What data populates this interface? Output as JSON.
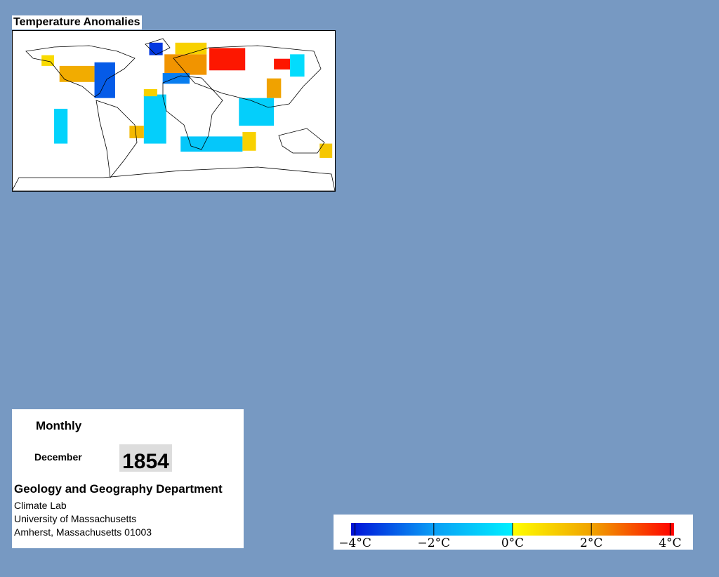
{
  "map": {
    "title": "Temperature Anomalies",
    "lonlim": [
      -180,
      180
    ],
    "latlim": [
      -90,
      90
    ],
    "cells": [
      {
        "lon": [
          40,
          80
        ],
        "lat": [
          45,
          70
        ],
        "value": 3.8
      },
      {
        "lon": [
          -10,
          37
        ],
        "lat": [
          40,
          63
        ],
        "value": 2.2
      },
      {
        "lon": [
          2,
          37
        ],
        "lat": [
          63,
          76
        ],
        "value": 1
      },
      {
        "lon": [
          -27,
          -12
        ],
        "lat": [
          62,
          76
        ],
        "value": -3.5
      },
      {
        "lon": [
          -12,
          18
        ],
        "lat": [
          30,
          42
        ],
        "value": -2.5
      },
      {
        "lon": [
          112,
          130
        ],
        "lat": [
          46,
          58
        ],
        "value": 3.8
      },
      {
        "lon": [
          130,
          146
        ],
        "lat": [
          38,
          63
        ],
        "value": -0.5
      },
      {
        "lon": [
          104,
          120
        ],
        "lat": [
          14,
          36
        ],
        "value": 2
      },
      {
        "lon": [
          73,
          112
        ],
        "lat": [
          -17,
          14
        ],
        "value": -0.8
      },
      {
        "lon": [
          -127,
          -88
        ],
        "lat": [
          32,
          50
        ],
        "value": 1.8
      },
      {
        "lon": [
          -88,
          -65
        ],
        "lat": [
          14,
          54
        ],
        "value": -3
      },
      {
        "lon": [
          -147,
          -133
        ],
        "lat": [
          50,
          62
        ],
        "value": 0.8
      },
      {
        "lon": [
          -133,
          -118
        ],
        "lat": [
          -37,
          2
        ],
        "value": -0.7
      },
      {
        "lon": [
          -33,
          -8
        ],
        "lat": [
          -37,
          18
        ],
        "value": -0.8
      },
      {
        "lon": [
          -33,
          -18
        ],
        "lat": [
          16,
          24
        ],
        "value": 1
      },
      {
        "lon": [
          -49,
          -33
        ],
        "lat": [
          -31,
          -17
        ],
        "value": 1.5
      },
      {
        "lon": [
          8,
          77
        ],
        "lat": [
          -46,
          -29
        ],
        "value": -1
      },
      {
        "lon": [
          77,
          92
        ],
        "lat": [
          -45,
          -24
        ],
        "value": 1
      },
      {
        "lon": [
          163,
          177
        ],
        "lat": [
          -53,
          -37
        ],
        "value": 1.2
      }
    ]
  },
  "colorbar": {
    "lim": [
      -4.1,
      4.1
    ],
    "negative_colors": [
      "#0010d8",
      "#0a9cf5",
      "#00f0ff"
    ],
    "positive_colors": [
      "#ffff00",
      "#f0a000",
      "#ff0000"
    ],
    "ticks": [
      {
        "value": -4,
        "label": "−4°C"
      },
      {
        "value": -2,
        "label": "−2°C"
      },
      {
        "value": 0,
        "label": "0°C"
      },
      {
        "value": 2,
        "label": "2°C"
      },
      {
        "value": 4,
        "label": "4°C"
      }
    ]
  },
  "panel": {
    "period": "Monthly",
    "month": "December",
    "year": "1854",
    "department": "Geology and Geography Department",
    "lines": [
      "Climate Lab",
      "University of Massachusetts",
      "Amherst, Massachusetts 01003"
    ]
  }
}
